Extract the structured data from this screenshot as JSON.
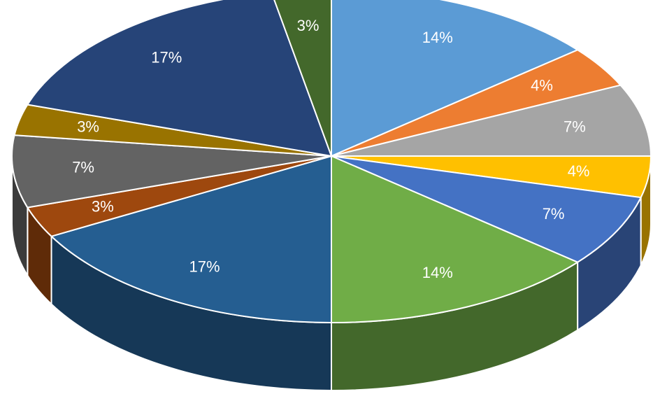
{
  "chart_data": {
    "type": "pie",
    "style": "3d",
    "title": "",
    "legend": "none",
    "slices": [
      {
        "value": 14,
        "label": "14%",
        "color": "#5B9BD5"
      },
      {
        "value": 4,
        "label": "4%",
        "color": "#ED7D31"
      },
      {
        "value": 7,
        "label": "7%",
        "color": "#A5A5A5"
      },
      {
        "value": 4,
        "label": "4%",
        "color": "#FFC000"
      },
      {
        "value": 7,
        "label": "7%",
        "color": "#4472C4"
      },
      {
        "value": 14,
        "label": "14%",
        "color": "#70AD47"
      },
      {
        "value": 17,
        "label": "17%",
        "color": "#255E91"
      },
      {
        "value": 3,
        "label": "3%",
        "color": "#9E480E"
      },
      {
        "value": 7,
        "label": "7%",
        "color": "#636363"
      },
      {
        "value": 3,
        "label": "3%",
        "color": "#997300"
      },
      {
        "value": 17,
        "label": "17%",
        "color": "#264478"
      },
      {
        "value": 3,
        "label": "3%",
        "color": "#43682B"
      }
    ]
  }
}
